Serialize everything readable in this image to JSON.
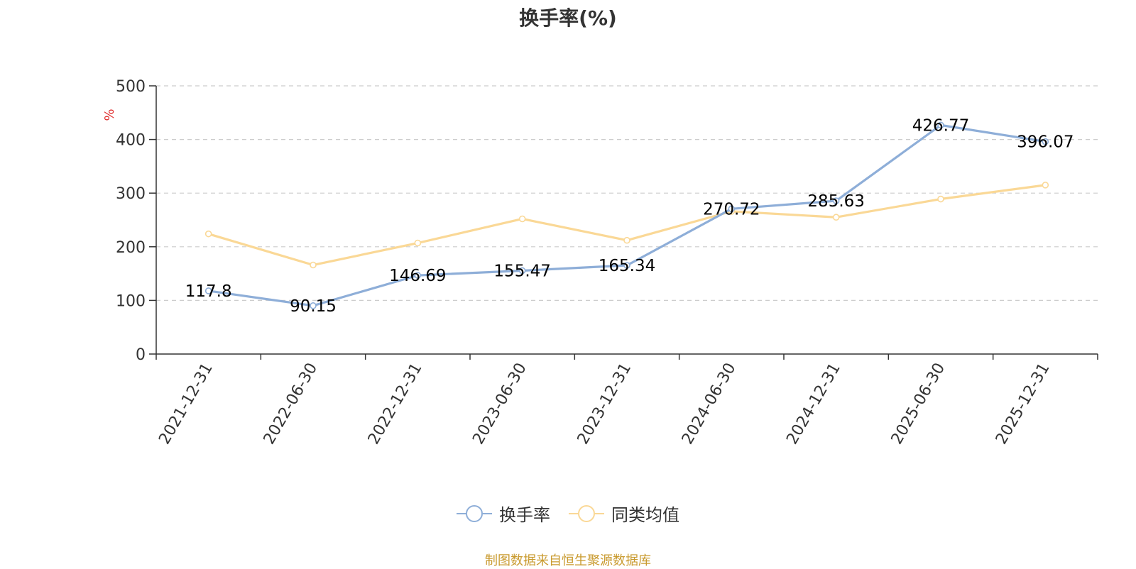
{
  "chart_data": {
    "type": "line",
    "title": "换手率(%)",
    "ylabel": "%",
    "ylim": [
      0,
      500
    ],
    "yticks": [
      0,
      100,
      200,
      300,
      400,
      500
    ],
    "grid": true,
    "legend_position": "bottom",
    "categories": [
      "2021-12-31",
      "2022-06-30",
      "2022-12-31",
      "2023-06-30",
      "2023-12-31",
      "2024-06-30",
      "2024-12-31",
      "2025-06-30",
      "2025-12-31"
    ],
    "series": [
      {
        "name": "换手率",
        "color": "#8eaed8",
        "values": [
          117.8,
          90.15,
          146.69,
          155.47,
          165.34,
          270.72,
          285.63,
          426.77,
          396.07
        ],
        "labels": [
          "117.8",
          "90.15",
          "146.69",
          "155.47",
          "165.34",
          "270.72",
          "285.63",
          "426.77",
          "396.07"
        ]
      },
      {
        "name": "同类均值",
        "color": "#fad896",
        "values": [
          224,
          166,
          207,
          252,
          212,
          266,
          255,
          289,
          315
        ]
      }
    ]
  },
  "source_text": "制图数据来自恒生聚源数据库",
  "colors": {
    "axis": "#333333",
    "grid": "#cccccc",
    "unit_label": "#e03030",
    "source": "#c99a2e"
  }
}
